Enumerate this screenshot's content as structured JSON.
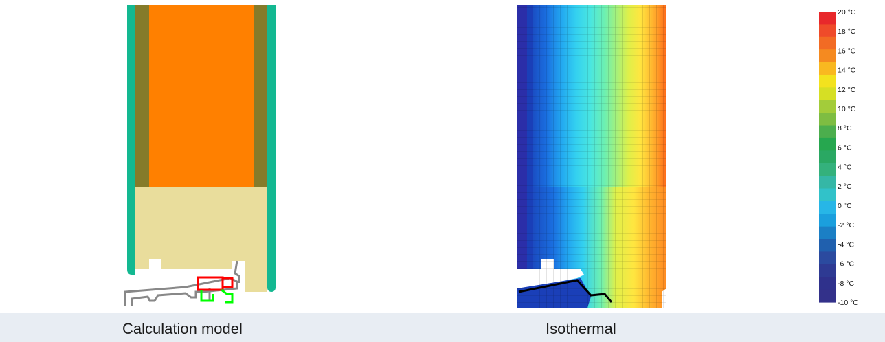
{
  "captions": {
    "left": "Calculation model",
    "right": "Isothermal"
  },
  "legend": {
    "labels": [
      "20 °C",
      "18 °C",
      "16 °C",
      "14 °C",
      "12 °C",
      "10 °C",
      "8 °C",
      "6 °C",
      "4 °C",
      "2 °C",
      "0 °C",
      "-2 °C",
      "-4 °C",
      "-6 °C",
      "-8 °C",
      "-10 °C"
    ],
    "colors": [
      "#e8282b",
      "#ef4b2a",
      "#f26b24",
      "#f58a20",
      "#f9b820",
      "#f3e21e",
      "#d6df24",
      "#a3cc3a",
      "#7ebd42",
      "#4cae4d",
      "#26a74f",
      "#2aa863",
      "#34b17c",
      "#35b7a6",
      "#31c2c9",
      "#27b6e7",
      "#1b9fdd",
      "#1b7fc5",
      "#2060ae",
      "#2b4a9f",
      "#2e3a93",
      "#2f318c",
      "#33318a"
    ],
    "high": "20 °C",
    "low": "-10 °C"
  },
  "model_colors": {
    "cladding": "#13b891",
    "membrane": "#857b2a",
    "insulation": "#ff8000",
    "timber": "#e9dd9c",
    "frame": "#888888",
    "seal_red": "#ff0000",
    "seal_green": "#00ff00"
  },
  "iso_colors": [
    "#2b2ea8",
    "#1a4fc4",
    "#1a6fe0",
    "#22a6f0",
    "#33d0f0",
    "#4ae6e0",
    "#6ef0b0",
    "#a6f07a",
    "#dff04a",
    "#ffe640",
    "#ffb830",
    "#ff8a22",
    "#ff6a1a"
  ]
}
